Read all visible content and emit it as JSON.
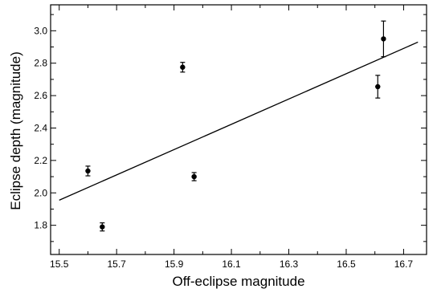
{
  "chart_data": {
    "type": "scatter",
    "xlabel": "Off-eclipse magnitude",
    "ylabel": "Eclipse depth (magnitude)",
    "xlim": [
      15.47,
      16.78
    ],
    "ylim": [
      1.62,
      3.16
    ],
    "xticks": [
      "15.5",
      "15.7",
      "15.9",
      "16.1",
      "16.3",
      "16.5",
      "16.7"
    ],
    "yticks": [
      "1.8",
      "2.0",
      "2.2",
      "2.4",
      "2.6",
      "2.8",
      "3.0"
    ],
    "grid": false,
    "points": [
      {
        "x": 15.6,
        "y": 2.135,
        "err": 0.03
      },
      {
        "x": 15.65,
        "y": 1.79,
        "err": 0.025
      },
      {
        "x": 15.93,
        "y": 2.775,
        "err": 0.03
      },
      {
        "x": 15.97,
        "y": 2.1,
        "err": 0.025
      },
      {
        "x": 16.61,
        "y": 2.655,
        "err": 0.07
      },
      {
        "x": 16.63,
        "y": 2.95,
        "err": 0.11
      }
    ],
    "fit_line": {
      "x": [
        15.5,
        16.75
      ],
      "y": [
        1.955,
        2.93
      ]
    },
    "colors": {
      "marker": "#000000",
      "line": "#000000",
      "axes": "#000000",
      "background": "#ffffff"
    }
  }
}
